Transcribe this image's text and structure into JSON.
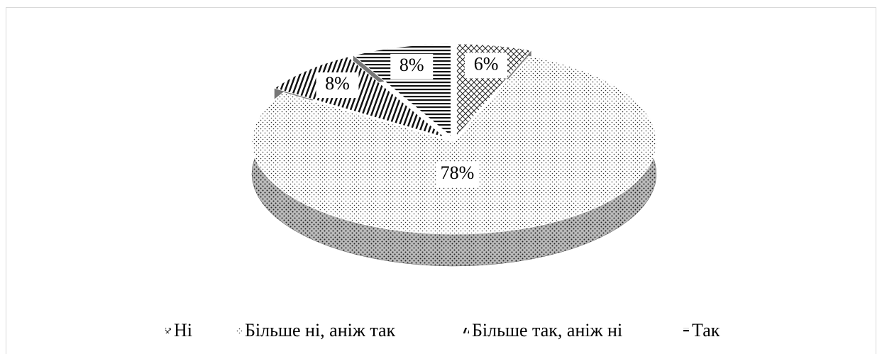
{
  "chart_data": {
    "type": "pie3d",
    "categories": [
      "Ні",
      "Більше ні, аніж так",
      "Більше так, аніж ні",
      "Так"
    ],
    "values": [
      6,
      78,
      8,
      8
    ],
    "value_labels": [
      "6%",
      "78%",
      "8%",
      "8%"
    ],
    "legend": "bottom"
  }
}
